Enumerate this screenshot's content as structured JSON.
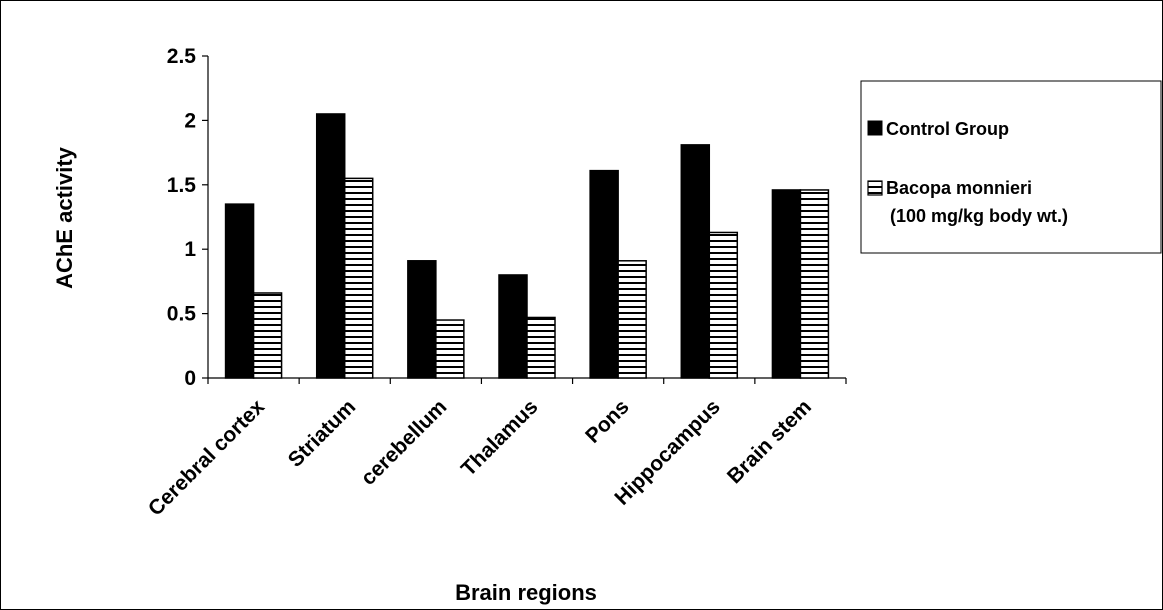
{
  "chart_data": {
    "type": "bar",
    "categories": [
      "Cerebral cortex",
      "Striatum",
      "cerebellum",
      "Thalamus",
      "Pons",
      "Hippocampus",
      "Brain stem"
    ],
    "series": [
      {
        "name": "Control Group",
        "values": [
          1.35,
          2.05,
          0.91,
          0.8,
          1.61,
          1.81,
          1.46
        ],
        "color": "#000000",
        "pattern": "solid"
      },
      {
        "name": "Bacopa monnieri",
        "name_line2": "(100 mg/kg body wt.)",
        "values": [
          0.66,
          1.55,
          0.45,
          0.47,
          0.91,
          1.13,
          1.46
        ],
        "color": "#000000",
        "pattern": "horizontal-stripes"
      }
    ],
    "xlabel": "Brain regions",
    "ylabel": "AChE activity",
    "ylim": [
      0,
      2.5
    ],
    "yticks": [
      "0",
      "0.5",
      "1",
      "1.5",
      "2",
      "2.5"
    ],
    "grid": false,
    "legend_position": "right"
  }
}
